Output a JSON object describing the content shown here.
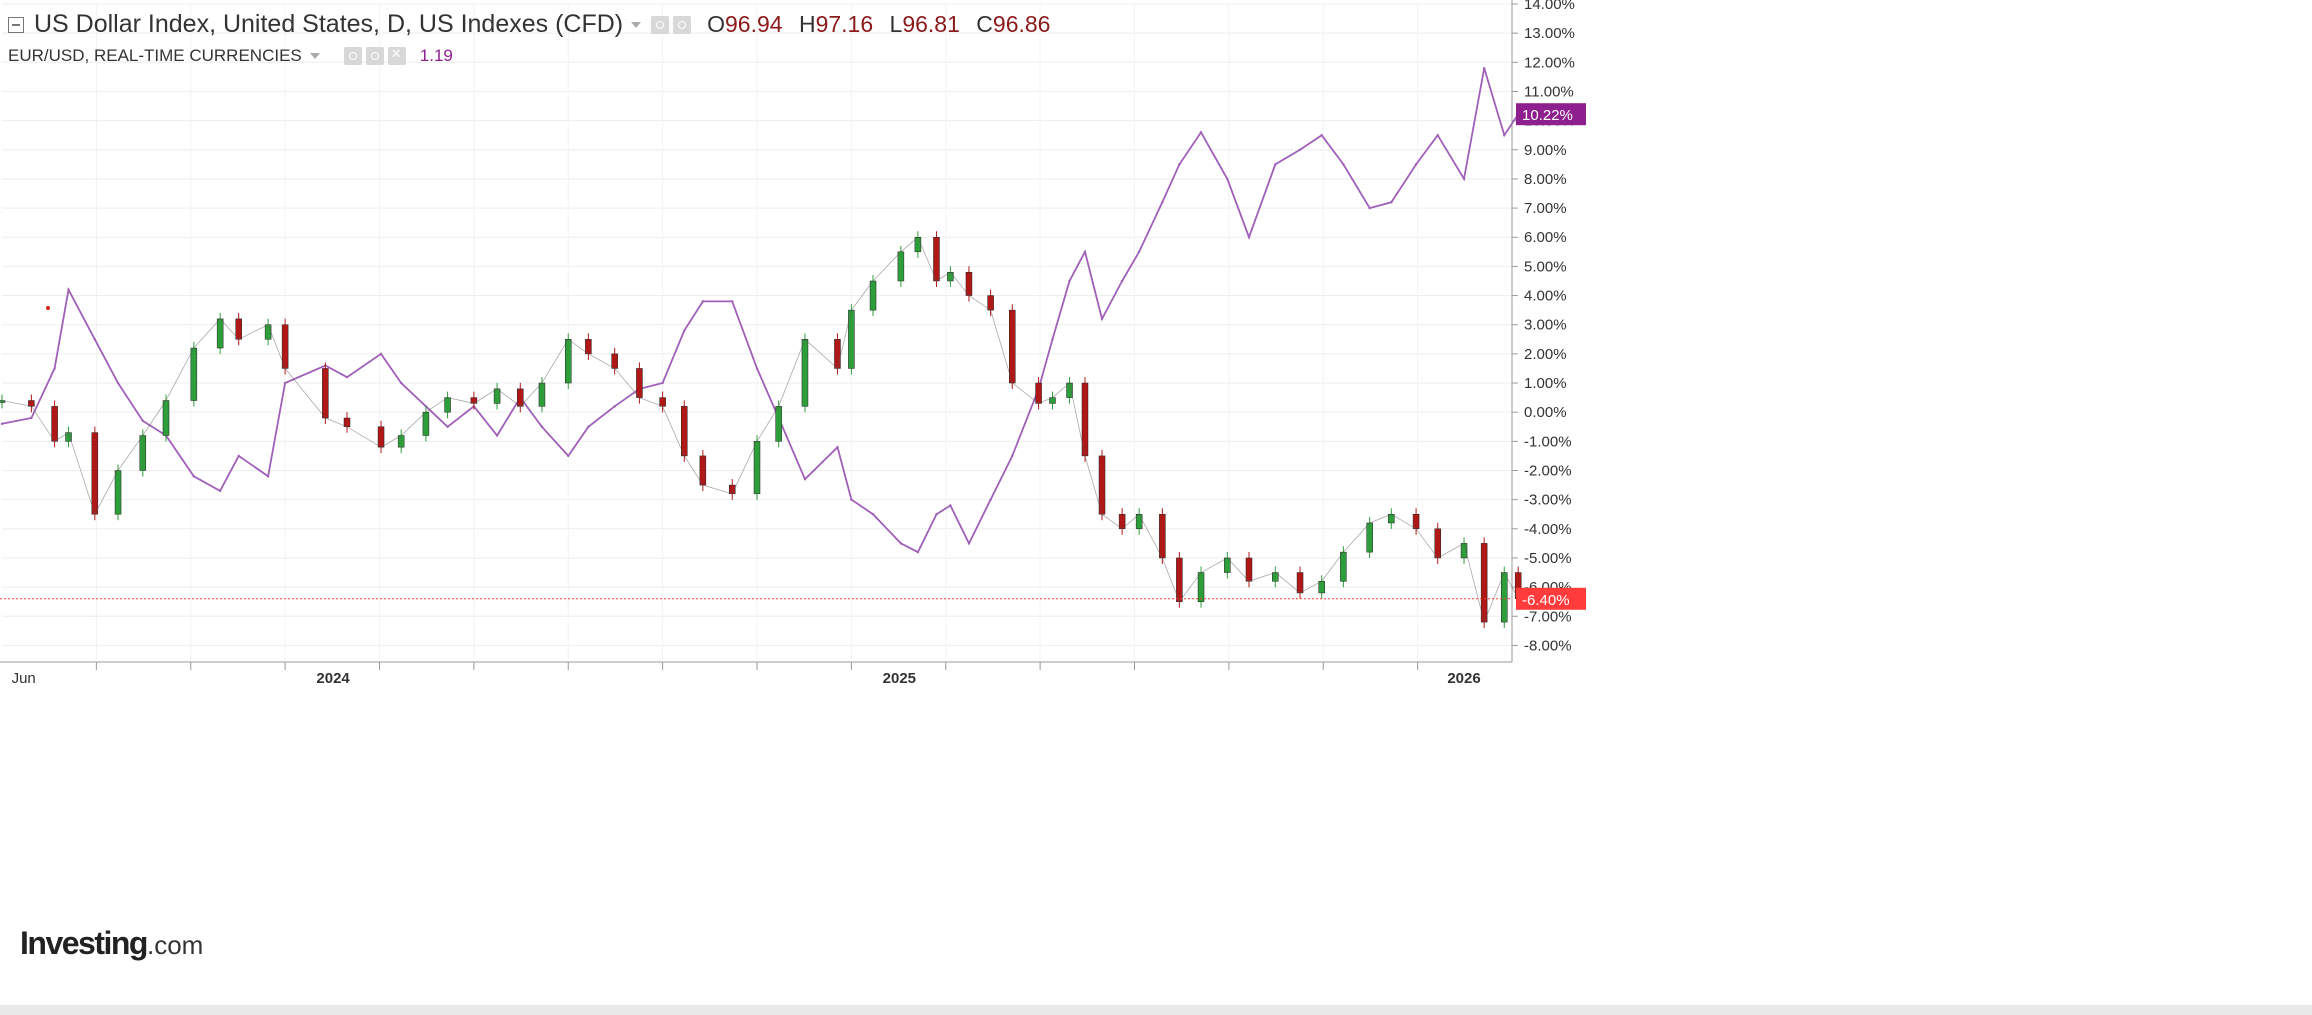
{
  "legend": {
    "main_title": "US Dollar Index, United States, D, US Indexes (CFD)",
    "ohlc": {
      "o_label": "O",
      "o_value": "96.94",
      "h_label": "H",
      "h_value": "97.16",
      "l_label": "L",
      "l_value": "96.81",
      "c_label": "C",
      "c_value": "96.86"
    },
    "compare_title": "EUR/USD, REAL-TIME CURRENCIES",
    "compare_value": "1.19"
  },
  "brand": {
    "name": "Investing",
    "suffix": ".com"
  },
  "colors": {
    "up_candle": "#2e9e3a",
    "down_candle": "#b01818",
    "compare_line": "#a05fb8",
    "last_price_line": "#ff3b3b",
    "compare_badge": "#8e1f8e",
    "grid": "#eeeeee",
    "axis_text": "#333333"
  },
  "chart_data": {
    "type": "line",
    "title": "US Dollar Index, United States, D, US Indexes (CFD)",
    "xlabel": "",
    "ylabel": "",
    "x_ticks": [
      "Jun",
      "2024",
      "2025",
      "2026"
    ],
    "y_unit": "%",
    "ylim": [
      -8.5,
      14.0
    ],
    "y_ticks": [
      14,
      13,
      12,
      11,
      10,
      9,
      8,
      7,
      6,
      5,
      4,
      3,
      2,
      1,
      0,
      -1,
      -2,
      -3,
      -4,
      -5,
      -6,
      -7,
      -8
    ],
    "grid": true,
    "x_range": [
      "2023-06-01",
      "2026-02-01"
    ],
    "series": [
      {
        "name": "US Dollar Index, United States, D, US Indexes (CFD)",
        "style": "candlestick",
        "last_label": "-6.40%",
        "last_value": -6.4,
        "x": [
          "2023-06-01",
          "2023-06-20",
          "2023-07-05",
          "2023-07-14",
          "2023-07-31",
          "2023-08-15",
          "2023-08-31",
          "2023-09-15",
          "2023-10-03",
          "2023-10-20",
          "2023-11-01",
          "2023-11-20",
          "2023-12-01",
          "2023-12-27",
          "2024-01-10",
          "2024-02-01",
          "2024-02-14",
          "2024-03-01",
          "2024-03-15",
          "2024-04-01",
          "2024-04-16",
          "2024-05-01",
          "2024-05-15",
          "2024-06-01",
          "2024-06-14",
          "2024-07-01",
          "2024-07-17",
          "2024-08-01",
          "2024-08-15",
          "2024-08-27",
          "2024-09-15",
          "2024-10-01",
          "2024-10-15",
          "2024-11-01",
          "2024-11-22",
          "2024-12-01",
          "2024-12-15",
          "2025-01-02",
          "2025-01-13",
          "2025-01-25",
          "2025-02-03",
          "2025-02-15",
          "2025-03-01",
          "2025-03-15",
          "2025-04-01",
          "2025-04-10",
          "2025-04-21",
          "2025-05-01",
          "2025-05-12",
          "2025-05-25",
          "2025-06-05",
          "2025-06-20",
          "2025-07-01",
          "2025-07-15",
          "2025-08-01",
          "2025-08-15",
          "2025-09-01",
          "2025-09-17",
          "2025-10-01",
          "2025-10-15",
          "2025-11-01",
          "2025-11-15",
          "2025-12-01",
          "2025-12-15",
          "2026-01-01",
          "2026-01-14",
          "2026-01-27",
          "2026-02-05"
        ],
        "values": [
          0.4,
          0.2,
          -1.0,
          -0.7,
          -3.5,
          -2.0,
          -0.8,
          0.4,
          2.2,
          3.2,
          2.5,
          3.0,
          1.5,
          -0.2,
          -0.5,
          -1.2,
          -0.8,
          0.0,
          0.5,
          0.3,
          0.8,
          0.2,
          1.0,
          2.5,
          2.0,
          1.5,
          0.5,
          0.2,
          -1.5,
          -2.5,
          -2.8,
          -1.0,
          0.2,
          2.5,
          1.5,
          3.5,
          4.5,
          5.5,
          6.0,
          4.5,
          4.8,
          4.0,
          3.5,
          1.0,
          0.3,
          0.5,
          1.0,
          -1.5,
          -3.5,
          -4.0,
          -3.5,
          -5.0,
          -6.5,
          -5.5,
          -5.0,
          -5.8,
          -5.5,
          -6.2,
          -5.8,
          -4.8,
          -3.8,
          -3.5,
          -4.0,
          -5.0,
          -4.5,
          -7.2,
          -5.5,
          -6.4
        ]
      },
      {
        "name": "EUR/USD, REAL-TIME CURRENCIES",
        "style": "line",
        "last_label": "10.22%",
        "last_value": 10.22,
        "x": [
          "2023-06-01",
          "2023-06-20",
          "2023-07-05",
          "2023-07-14",
          "2023-07-31",
          "2023-08-15",
          "2023-08-31",
          "2023-09-15",
          "2023-10-03",
          "2023-10-20",
          "2023-11-01",
          "2023-11-20",
          "2023-12-01",
          "2023-12-27",
          "2024-01-10",
          "2024-02-01",
          "2024-02-14",
          "2024-03-01",
          "2024-03-15",
          "2024-04-01",
          "2024-04-16",
          "2024-05-01",
          "2024-05-15",
          "2024-06-01",
          "2024-06-14",
          "2024-07-01",
          "2024-07-17",
          "2024-08-01",
          "2024-08-15",
          "2024-08-27",
          "2024-09-15",
          "2024-10-01",
          "2024-10-15",
          "2024-11-01",
          "2024-11-22",
          "2024-12-01",
          "2024-12-15",
          "2025-01-02",
          "2025-01-13",
          "2025-01-25",
          "2025-02-03",
          "2025-02-15",
          "2025-03-01",
          "2025-03-15",
          "2025-04-01",
          "2025-04-10",
          "2025-04-21",
          "2025-05-01",
          "2025-05-12",
          "2025-05-25",
          "2025-06-05",
          "2025-06-20",
          "2025-07-01",
          "2025-07-15",
          "2025-08-01",
          "2025-08-15",
          "2025-09-01",
          "2025-09-17",
          "2025-10-01",
          "2025-10-15",
          "2025-11-01",
          "2025-11-15",
          "2025-12-01",
          "2025-12-15",
          "2026-01-01",
          "2026-01-14",
          "2026-01-27",
          "2026-02-05"
        ],
        "values": [
          -0.4,
          -0.2,
          1.5,
          4.2,
          2.5,
          1.0,
          -0.3,
          -0.8,
          -2.2,
          -2.7,
          -1.5,
          -2.2,
          1.0,
          1.6,
          1.2,
          2.0,
          1.0,
          0.2,
          -0.5,
          0.2,
          -0.8,
          0.5,
          -0.5,
          -1.5,
          -0.5,
          0.2,
          0.8,
          1.0,
          2.8,
          3.8,
          3.8,
          1.5,
          -0.2,
          -2.3,
          -1.2,
          -3.0,
          -3.5,
          -4.5,
          -4.8,
          -3.5,
          -3.2,
          -4.5,
          -3.0,
          -1.5,
          0.8,
          2.5,
          4.5,
          5.5,
          3.2,
          4.5,
          5.5,
          7.2,
          8.5,
          9.6,
          8.0,
          6.0,
          8.5,
          9.0,
          9.5,
          8.5,
          7.0,
          7.2,
          8.5,
          9.5,
          8.0,
          11.8,
          9.5,
          10.22
        ]
      }
    ]
  }
}
